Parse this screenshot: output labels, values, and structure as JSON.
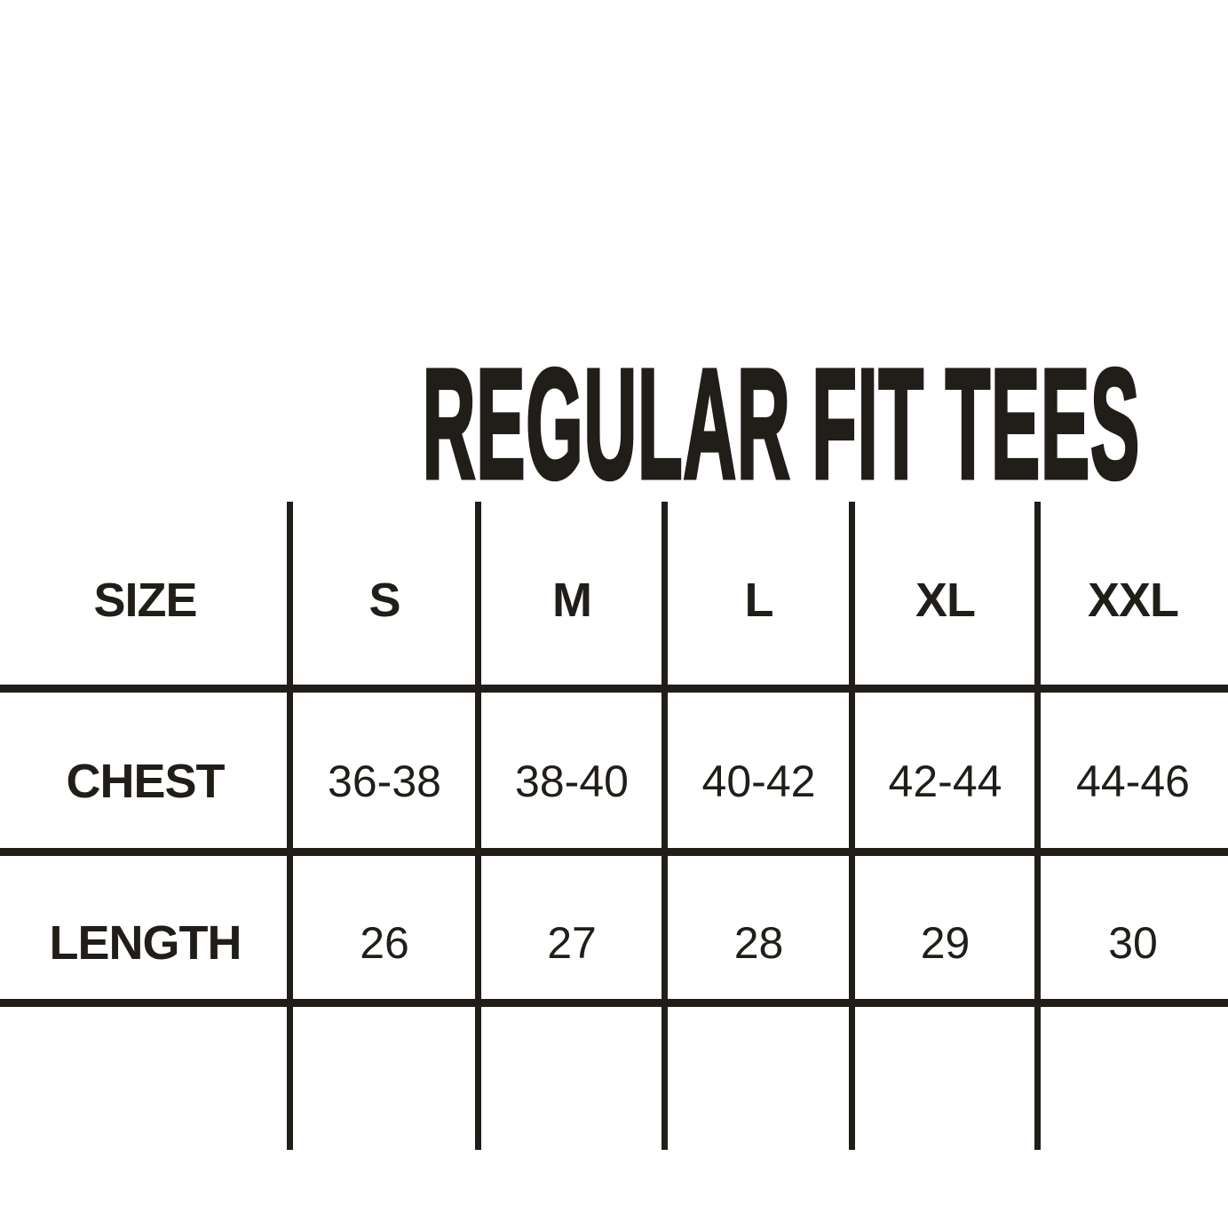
{
  "chart_data": {
    "type": "table",
    "title": "REGULAR FIT TEES",
    "columns": [
      "SIZE",
      "S",
      "M",
      "L",
      "XL",
      "XXL"
    ],
    "rows": [
      [
        "CHEST",
        "36-38",
        "38-40",
        "40-42",
        "42-44",
        "44-46"
      ],
      [
        "LENGTH",
        "26",
        "27",
        "28",
        "29",
        "30"
      ]
    ],
    "layout": {
      "grid": "open-sided table, 3 horizontal rules full-bleed, 5 vertical rules",
      "legend": "none",
      "units_shown": false
    }
  },
  "colors": {
    "ink": "#211e1a",
    "background": "#ffffff"
  }
}
